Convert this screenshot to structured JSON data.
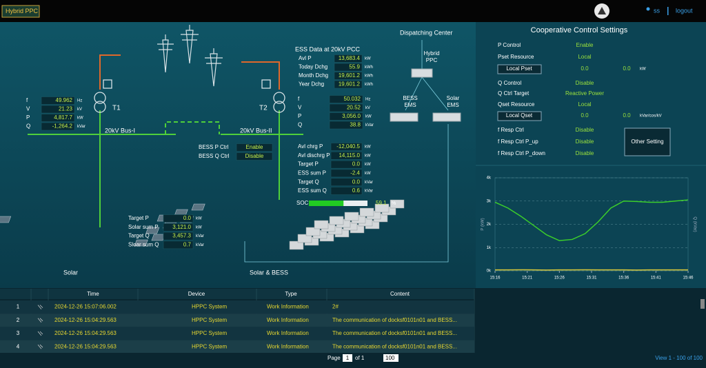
{
  "header": {
    "title": "Hybrid PPC",
    "user": "ss",
    "logout": "logout"
  },
  "diagram": {
    "dispatching_center": "Dispatching Center",
    "hybrid_ppc": "Hybrid PPC",
    "bess_ems": "BESS EMS",
    "solar_ems": "Solar EMS",
    "t1": "T1",
    "t2": "T2",
    "bus1": "20kV Bus-I",
    "bus2": "20kV Bus-II",
    "solar": "Solar",
    "solar_bess": "Solar & BESS",
    "ess_title": "ESS Data at 20kV PCC"
  },
  "t1_readings": [
    [
      "f",
      "49.962",
      "Hz"
    ],
    [
      "V",
      "21.23",
      "kV"
    ],
    [
      "P",
      "4,817.7",
      "kW"
    ],
    [
      "Q",
      "-1,264.2",
      "kVar"
    ]
  ],
  "t2_readings": [
    [
      "f",
      "50.032",
      "Hz"
    ],
    [
      "V",
      "20.52",
      "kV"
    ],
    [
      "P",
      "3,056.0",
      "kW"
    ],
    [
      "Q",
      "38.8",
      "kVar"
    ]
  ],
  "ess_data": [
    [
      "Avl P",
      "13,683.4",
      "kW"
    ],
    [
      "Today Dchg",
      "55.9",
      "kWh"
    ],
    [
      "Month Dchg",
      "19,601.2",
      "kWh"
    ],
    [
      "Year Dchg",
      "19,601.2",
      "kWh"
    ]
  ],
  "bess_ctrl": [
    [
      "BESS P Ctrl",
      "Enable"
    ],
    [
      "BESS Q Ctrl",
      "Disable"
    ]
  ],
  "bess_readings": [
    [
      "Avl chrg P",
      "-12,040.5",
      "kW"
    ],
    [
      "Avl dischrg P",
      "14,115.0",
      "kW"
    ],
    [
      "Target P",
      "0.0",
      "kW"
    ],
    [
      "ESS sum P",
      "-2.4",
      "kW"
    ],
    [
      "Target Q",
      "0.0",
      "kVar"
    ],
    [
      "ESS sum Q",
      "0.6",
      "kVar"
    ]
  ],
  "soc": {
    "label": "SOC",
    "value": 59.1,
    "unit": "%"
  },
  "solar_readings": [
    [
      "Target P",
      "0.0",
      "kW"
    ],
    [
      "Solar sum P",
      "3,121.0",
      "kW"
    ],
    [
      "Target Q",
      "3,457.3",
      "kVar"
    ],
    [
      "Sloar sum Q",
      "0.7",
      "kVar"
    ]
  ],
  "settings": {
    "title": "Cooperative Control Settings",
    "rows": [
      [
        "P Control",
        "Enable"
      ],
      [
        "Pset Resource",
        "Local"
      ],
      [
        "Local Pset",
        "0.0",
        "0.0",
        "kW"
      ],
      [
        "Q Control",
        "Disable"
      ],
      [
        "Q Ctrl Target",
        "Reactive Power"
      ],
      [
        "Qset Resource",
        "Local"
      ],
      [
        "Local Qset",
        "0.0",
        "0.0",
        "kVar/cos/kV"
      ],
      [
        "f Resp Ctrl",
        "Disable"
      ],
      [
        "f Resp Ctrl P_up",
        "Disable"
      ],
      [
        "f Resp Ctrl P_down",
        "Disable"
      ]
    ],
    "other_setting": "Other Setting"
  },
  "chart_data": {
    "type": "line",
    "y_label": "P (kW)",
    "y2_label": "Q (kVar)",
    "x": [
      "15:16",
      "15:18",
      "15:20",
      "15:22",
      "15:24",
      "15:26",
      "15:28",
      "15:30",
      "15:32",
      "15:34",
      "15:36",
      "15:38",
      "15:40",
      "15:42",
      "15:44",
      "15:46"
    ],
    "series": [
      {
        "color": "#3ccf2a",
        "values": [
          2950,
          2700,
          2350,
          1950,
          1550,
          1300,
          1350,
          1600,
          2100,
          2700,
          3000,
          2980,
          2950,
          2950,
          3000,
          3050
        ]
      },
      {
        "color": "#d8c83a",
        "values": [
          40,
          40,
          45,
          40,
          35,
          40,
          40,
          45,
          40,
          40,
          40,
          35,
          40,
          40,
          40,
          40
        ]
      }
    ],
    "xlim": [
      "15:16",
      "15:46"
    ],
    "xticks": [
      "15:16",
      "15:21",
      "15:26",
      "15:31",
      "15:36",
      "15:41",
      "15:46"
    ],
    "ylim": [
      0,
      4000
    ],
    "yticks": [
      {
        "value": 0,
        "label": "0k"
      },
      {
        "value": 1000,
        "label": "1k"
      },
      {
        "value": 2000,
        "label": "2k"
      },
      {
        "value": 3000,
        "label": "3k"
      },
      {
        "value": 4000,
        "label": "4k"
      }
    ],
    "grid": true
  },
  "log_table": {
    "columns": [
      "Time",
      "Device",
      "Type",
      "Content"
    ],
    "rows": [
      [
        "1",
        "2024-12-26 15:07:06.002",
        "HPPC System",
        "Work Information",
        "2#"
      ],
      [
        "2",
        "2024-12-26 15:04:29.563",
        "HPPC System",
        "Work Information",
        "The communication of docksf0101n01 and BESS..."
      ],
      [
        "3",
        "2024-12-26 15:04:29.563",
        "HPPC System",
        "Work Information",
        "The communication of docksf0101n01 and BESS..."
      ],
      [
        "4",
        "2024-12-26 15:04:29.563",
        "HPPC System",
        "Work Information",
        "The communication of docksf0101n01 and BESS..."
      ]
    ],
    "page_label": "Page",
    "page": "1",
    "of": "of 1",
    "page_size": "100",
    "view": "View 1 - 100 of 100"
  }
}
